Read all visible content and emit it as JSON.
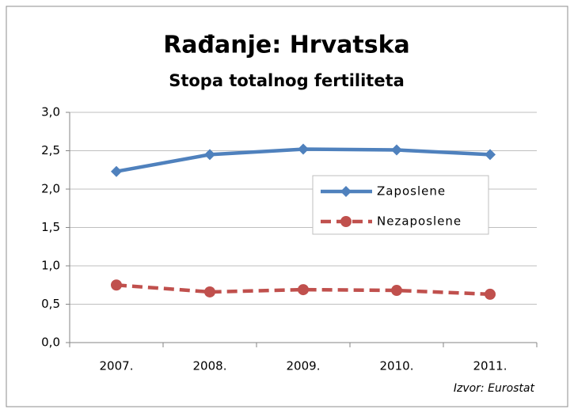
{
  "chart_data": {
    "type": "line",
    "title": "Rađanje: Hrvatska",
    "subtitle": "Stopa totalnog fertiliteta",
    "annotation": "Izvor: Eurostat",
    "categories": [
      "2007.",
      "2008.",
      "2009.",
      "2010.",
      "2011."
    ],
    "series": [
      {
        "name": "Zaposlene",
        "color": "#4f81bd",
        "values": [
          2.23,
          2.45,
          2.52,
          2.51,
          2.45
        ]
      },
      {
        "name": "Nezaposlene",
        "color": "#c0504d",
        "values": [
          0.75,
          0.66,
          0.69,
          0.68,
          0.63
        ]
      }
    ],
    "ylim": [
      0,
      3
    ],
    "yticks": [
      {
        "value": 0,
        "label": "0,0"
      },
      {
        "value": 0.5,
        "label": "0,5"
      },
      {
        "value": 1,
        "label": "1,0"
      },
      {
        "value": 1.5,
        "label": "1,5"
      },
      {
        "value": 2,
        "label": "2,0"
      },
      {
        "value": 2.5,
        "label": "2,5"
      },
      {
        "value": 3,
        "label": "3,0"
      }
    ],
    "grid": true,
    "legend": "right"
  }
}
